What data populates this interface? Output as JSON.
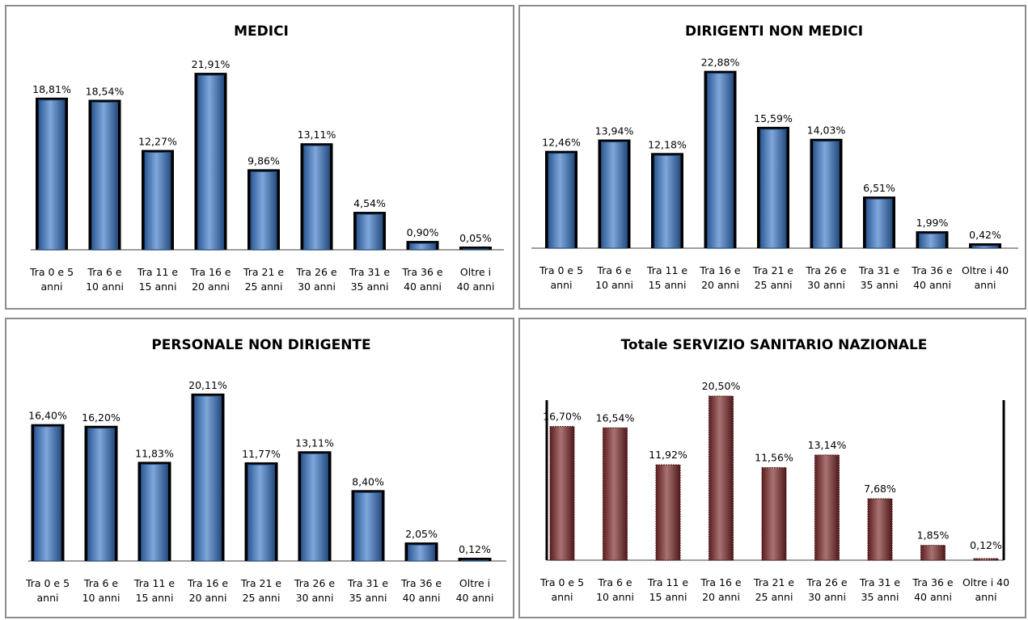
{
  "chart_data": [
    {
      "type": "bar",
      "title": "MEDICI",
      "categories": [
        "Tra 0 e 5 anni",
        "Tra 6 e 10 anni",
        "Tra 11 e 15 anni",
        "Tra 16 e 20 anni",
        "Tra 21 e 25 anni",
        "Tra 26 e 30 anni",
        "Tra 31 e 35 anni",
        "Tra 36 e 40 anni",
        "Oltre i 40 anni"
      ],
      "category_lines": [
        [
          "Tra 0 e 5",
          "anni"
        ],
        [
          "Tra 6 e",
          "10 anni"
        ],
        [
          "Tra 11 e",
          "15 anni"
        ],
        [
          "Tra 16 e",
          "20 anni"
        ],
        [
          "Tra 21 e",
          "25 anni"
        ],
        [
          "Tra 26 e",
          "30 anni"
        ],
        [
          "Tra 31 e",
          "35 anni"
        ],
        [
          "Tra 36 e",
          "40 anni"
        ],
        [
          "Oltre i",
          "40 anni"
        ]
      ],
      "values": [
        18.81,
        18.54,
        12.27,
        21.91,
        9.86,
        13.11,
        4.54,
        0.9,
        0.05
      ],
      "labels": [
        "18,81%",
        "18,54%",
        "12,27%",
        "21,91%",
        "9,86%",
        "13,11%",
        "4,54%",
        "0,90%",
        "0,05%"
      ],
      "bar_color": "#3b78c8",
      "xlabel": "",
      "ylabel": "",
      "grid": false
    },
    {
      "type": "bar",
      "title": "DIRIGENTI NON MEDICI",
      "categories": [
        "Tra 0 e 5 anni",
        "Tra 6 e 10 anni",
        "Tra 11 e 15 anni",
        "Tra 16 e 20 anni",
        "Tra 21 e 25 anni",
        "Tra 26 e 30 anni",
        "Tra 31 e 35 anni",
        "Tra 36 e 40 anni",
        "Oltre i 40 anni"
      ],
      "category_lines": [
        [
          "Tra 0 e 5",
          "anni"
        ],
        [
          "Tra 6 e",
          "10 anni"
        ],
        [
          "Tra 11 e",
          "15 anni"
        ],
        [
          "Tra 16 e",
          "20 anni"
        ],
        [
          "Tra 21 e",
          "25 anni"
        ],
        [
          "Tra 26 e",
          "30 anni"
        ],
        [
          "Tra 31 e",
          "35 anni"
        ],
        [
          "Tra 36 e",
          "40 anni"
        ],
        [
          "Oltre i 40",
          "anni"
        ]
      ],
      "values": [
        12.46,
        13.94,
        12.18,
        22.88,
        15.59,
        14.03,
        6.51,
        1.99,
        0.42
      ],
      "labels": [
        "12,46%",
        "13,94%",
        "12,18%",
        "22,88%",
        "15,59%",
        "14,03%",
        "6,51%",
        "1,99%",
        "0,42%"
      ],
      "bar_color": "#3b78c8",
      "xlabel": "",
      "ylabel": "",
      "grid": false
    },
    {
      "type": "bar",
      "title": "PERSONALE NON DIRIGENTE",
      "categories": [
        "Tra 0 e 5 anni",
        "Tra 6 e 10 anni",
        "Tra 11 e 15 anni",
        "Tra 16 e 20 anni",
        "Tra 21 e 25 anni",
        "Tra 26 e 30 anni",
        "Tra 31 e 35 anni",
        "Tra 36 e 40 anni",
        "Oltre i 40 anni"
      ],
      "category_lines": [
        [
          "Tra 0 e 5",
          "anni"
        ],
        [
          "Tra 6 e",
          "10 anni"
        ],
        [
          "Tra 11 e",
          "15 anni"
        ],
        [
          "Tra 16 e",
          "20 anni"
        ],
        [
          "Tra 21 e",
          "25 anni"
        ],
        [
          "Tra 26 e",
          "30 anni"
        ],
        [
          "Tra 31 e",
          "35 anni"
        ],
        [
          "Tra 36 e",
          "40 anni"
        ],
        [
          "Oltre i",
          "40 anni"
        ]
      ],
      "values": [
        16.4,
        16.2,
        11.83,
        20.11,
        11.77,
        13.11,
        8.4,
        2.05,
        0.12
      ],
      "labels": [
        "16,40%",
        "16,20%",
        "11,83%",
        "20,11%",
        "11,77%",
        "13,11%",
        "8,40%",
        "2,05%",
        "0,12%"
      ],
      "bar_color": "#3b78c8",
      "xlabel": "",
      "ylabel": "",
      "grid": false
    },
    {
      "type": "bar",
      "title": "Totale SERVIZIO SANITARIO NAZIONALE",
      "categories": [
        "Tra 0 e 5 anni",
        "Tra 6 e 10 anni",
        "Tra 11 e 15 anni",
        "Tra 16 e 20 anni",
        "Tra 21 e 25 anni",
        "Tra 26 e 30 anni",
        "Tra 31 e 35 anni",
        "Tra 36 e 40 anni",
        "Oltre i 40 anni"
      ],
      "category_lines": [
        [
          "Tra 0 e 5",
          "anni"
        ],
        [
          "Tra 6 e",
          "10 anni"
        ],
        [
          "Tra 11 e",
          "15 anni"
        ],
        [
          "Tra 16 e",
          "20 anni"
        ],
        [
          "Tra 21 e",
          "25 anni"
        ],
        [
          "Tra 26 e",
          "30 anni"
        ],
        [
          "Tra 31 e",
          "35 anni"
        ],
        [
          "Tra 36 e",
          "40 anni"
        ],
        [
          "Oltre i 40",
          "anni"
        ]
      ],
      "values": [
        16.7,
        16.54,
        11.92,
        20.5,
        11.56,
        13.14,
        7.68,
        1.85,
        0.12
      ],
      "labels": [
        "16,70%",
        "16,54%",
        "11,92%",
        "20,50%",
        "11,56%",
        "13,14%",
        "7,68%",
        "1,85%",
        "0,12%"
      ],
      "bar_color": "#7a2727",
      "xlabel": "",
      "ylabel": "",
      "grid": false
    }
  ]
}
